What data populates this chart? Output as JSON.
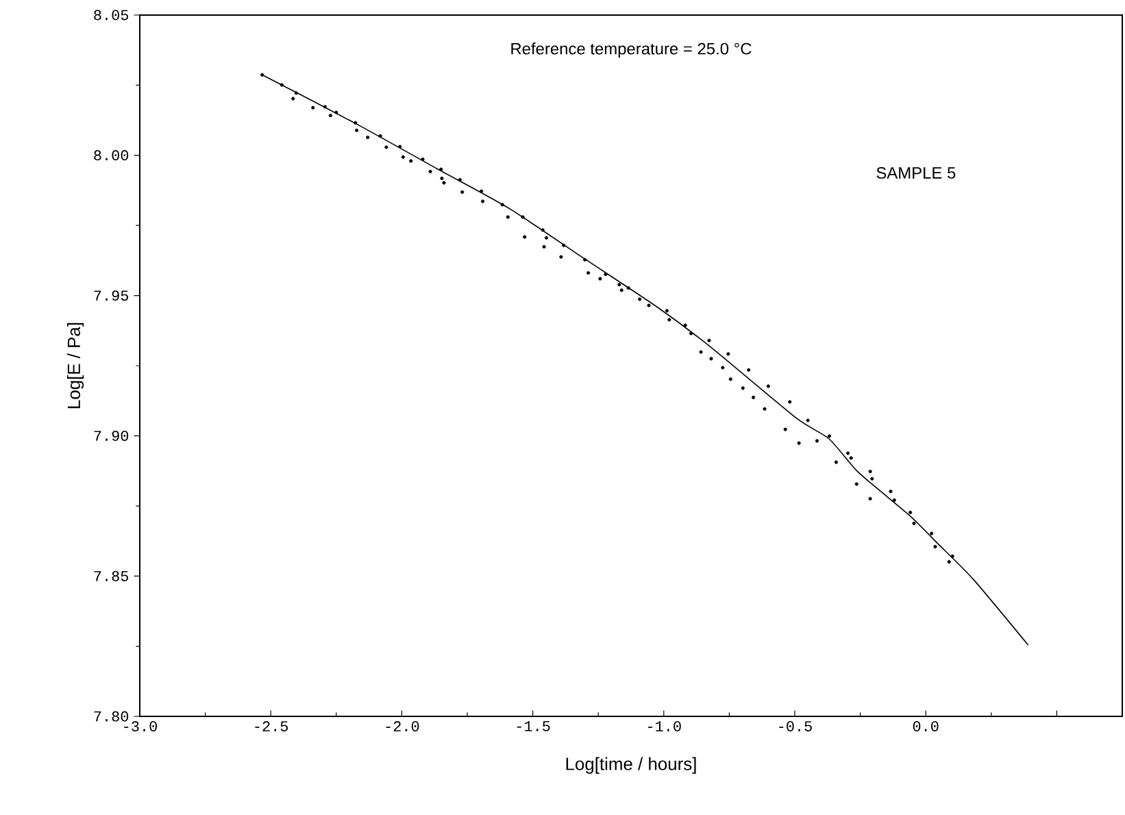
{
  "chart_data": {
    "type": "scatter",
    "xlabel": "Log[time / hours]",
    "ylabel": "Log[E / Pa]",
    "annotations": [
      "Reference temperature = 25.0 °C",
      "SAMPLE 5"
    ],
    "xlim": [
      -3.0,
      0.75
    ],
    "ylim": [
      7.8,
      8.05
    ],
    "xticks": [
      {
        "value": -3.0,
        "label": "-3.0"
      },
      {
        "value": -2.5,
        "label": "-2.5"
      },
      {
        "value": -2.0,
        "label": "-2.0"
      },
      {
        "value": -1.5,
        "label": "-1.5"
      },
      {
        "value": -1.0,
        "label": "-1.0"
      },
      {
        "value": -0.5,
        "label": "-0.5"
      },
      {
        "value": 0.0,
        "label": "0.0"
      },
      {
        "value": 0.5,
        "label": null
      }
    ],
    "yticks": [
      {
        "value": 7.8,
        "label": "7.80"
      },
      {
        "value": 7.85,
        "label": "7.85"
      },
      {
        "value": 7.9,
        "label": "7.90"
      },
      {
        "value": 7.95,
        "label": "7.95"
      },
      {
        "value": 8.0,
        "label": "8.00"
      },
      {
        "value": 8.05,
        "label": "8.05"
      }
    ],
    "grid": false,
    "series": [
      {
        "type": "scatter",
        "color": "#000000",
        "marker": "circle",
        "x": [
          -2.533,
          -2.458,
          -2.403,
          -2.415,
          -2.339,
          -2.293,
          -2.272,
          -2.25,
          -2.177,
          -2.172,
          -2.13,
          -2.082,
          -2.059,
          -2.007,
          -1.995,
          -1.965,
          -1.92,
          -1.891,
          -1.85,
          -1.847,
          -1.839,
          -1.778,
          -1.769,
          -1.696,
          -1.691,
          -1.616,
          -1.595,
          -1.538,
          -1.531,
          -1.462,
          -1.457,
          -1.448,
          -1.392,
          -1.382,
          -1.301,
          -1.288,
          -1.243,
          -1.222,
          -1.17,
          -1.161,
          -1.135,
          -1.092,
          -1.057,
          -0.988,
          -0.979,
          -0.918,
          -0.896,
          -0.858,
          -0.827,
          -0.819,
          -0.775,
          -0.754,
          -0.745,
          -0.698,
          -0.676,
          -0.658,
          -0.615,
          -0.601,
          -0.536,
          -0.519,
          -0.484,
          -0.45,
          -0.415,
          -0.368,
          -0.342,
          -0.297,
          -0.285,
          -0.264,
          -0.212,
          -0.205,
          -0.212,
          -0.134,
          -0.12,
          -0.059,
          -0.045,
          0.022,
          0.036,
          0.089,
          0.102
        ],
        "values": [
          8.0287,
          8.0251,
          8.0222,
          8.0202,
          8.017,
          8.0173,
          8.0142,
          8.0153,
          8.0116,
          8.0089,
          8.0064,
          8.0069,
          8.0029,
          8.0031,
          7.9994,
          7.998,
          7.9986,
          7.9942,
          7.995,
          7.9918,
          7.9902,
          7.9913,
          7.9869,
          7.9872,
          7.9836,
          7.9824,
          7.978,
          7.978,
          7.9709,
          7.9734,
          7.9674,
          7.9706,
          7.9638,
          7.9679,
          7.9628,
          7.9581,
          7.956,
          7.9576,
          7.9539,
          7.9519,
          7.9527,
          7.9487,
          7.9465,
          7.9446,
          7.9414,
          7.9394,
          7.9365,
          7.9299,
          7.934,
          7.9275,
          7.9243,
          7.9292,
          7.9202,
          7.917,
          7.9235,
          7.9137,
          7.9096,
          7.9177,
          7.9023,
          7.9121,
          7.8974,
          7.9055,
          7.8982,
          7.8999,
          7.8906,
          7.8938,
          7.8921,
          7.8828,
          7.8873,
          7.8847,
          7.8776,
          7.8802,
          7.8771,
          7.8727,
          7.8688,
          7.8652,
          7.8605,
          7.8551,
          7.8571
        ]
      },
      {
        "type": "line",
        "color": "#000000",
        "marker": "none",
        "line_style": "solid",
        "x": [
          -2.533,
          -2.177,
          -1.865,
          -1.589,
          -1.307,
          -1.031,
          -0.823,
          -0.495,
          -0.37,
          -0.266,
          -0.182,
          -0.057,
          0.047,
          0.182,
          0.391
        ],
        "values": [
          8.0287,
          8.0114,
          7.9952,
          7.981,
          7.9634,
          7.9463,
          7.9318,
          7.9064,
          7.899,
          7.8878,
          7.881,
          7.8712,
          7.8615,
          7.8488,
          7.8254
        ]
      }
    ]
  }
}
